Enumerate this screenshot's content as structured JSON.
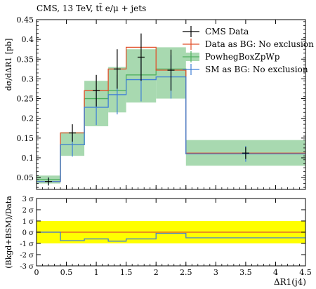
{
  "chart_data": [
    {
      "type": "line",
      "title": "CMS, 13 TeV, tt̄ e/μ + jets",
      "ylabel": "dσ/dΔR1 [pb]",
      "xlim": [
        0,
        4.5
      ],
      "ylim": [
        0.02,
        0.45
      ],
      "yticks": [
        0.05,
        0.1,
        0.15,
        0.2,
        0.25,
        0.3,
        0.35,
        0.4,
        0.45
      ],
      "ytick_labels": [
        "0.05",
        "0.1",
        "0.15",
        "0.2",
        "0.25",
        "0.3",
        "0.35",
        "0.4",
        "0.45"
      ],
      "legend": [
        "CMS Data",
        "Data as BG: No exclusion",
        "PowhegBoxZpWp",
        "SM as BG: No exclusion"
      ],
      "legend_position": "top-right",
      "colors": {
        "data": "#000000",
        "data_bg": "#e1512b",
        "powheg": "#50b060",
        "sm_bg": "#3f7fd6",
        "band": "#a8d9b0"
      },
      "edges": [
        0,
        0.4,
        0.8,
        1.2,
        1.5,
        2.0,
        2.5,
        4.5
      ],
      "series": [
        {
          "name": "CMS Data",
          "x": [
            0.2,
            0.6,
            1.0,
            1.35,
            1.75,
            2.25,
            3.5
          ],
          "y": [
            0.04,
            0.163,
            0.27,
            0.325,
            0.355,
            0.322,
            0.112
          ],
          "yerr_up": [
            0.01,
            0.022,
            0.04,
            0.05,
            0.06,
            0.052,
            0.015
          ],
          "yerr_down": [
            0.01,
            0.022,
            0.04,
            0.05,
            0.06,
            0.052,
            0.015
          ]
        },
        {
          "name": "Data as BG: No exclusion",
          "values": [
            0.04,
            0.163,
            0.27,
            0.325,
            0.38,
            0.322,
            0.112
          ]
        },
        {
          "name": "PowhegBoxZpWp",
          "values": [
            0.045,
            0.133,
            0.25,
            0.27,
            0.31,
            0.325,
            0.11
          ],
          "band_low": [
            0.035,
            0.105,
            0.18,
            0.215,
            0.24,
            0.25,
            0.08
          ],
          "band_high": [
            0.055,
            0.165,
            0.295,
            0.33,
            0.375,
            0.38,
            0.145
          ]
        },
        {
          "name": "SM as BG: No exclusion",
          "values": [
            0.04,
            0.133,
            0.228,
            0.26,
            0.298,
            0.305,
            0.11
          ],
          "yerr_up": [
            0.01,
            0.03,
            0.045,
            0.05,
            0.055,
            0.055,
            0.02
          ],
          "yerr_down": [
            0.01,
            0.03,
            0.045,
            0.05,
            0.055,
            0.055,
            0.02
          ]
        }
      ]
    },
    {
      "type": "line",
      "xlabel": "ΔR1(j4)",
      "ylabel": "(Bkgd+BSM)/Data",
      "xlim": [
        0,
        4.5
      ],
      "ylim": [
        -3,
        3
      ],
      "xticks": [
        0,
        0.5,
        1,
        1.5,
        2,
        2.5,
        3,
        3.5,
        4,
        4.5
      ],
      "xtick_labels": [
        "0",
        "0.5",
        "1",
        "1.5",
        "2",
        "2.5",
        "3",
        "3.5",
        "4",
        "4.5"
      ],
      "yticks": [
        -3,
        -2,
        -1,
        0,
        1,
        2,
        3
      ],
      "ytick_labels": [
        "-3 σ",
        "-2 σ",
        "-1 σ",
        "0 σ",
        "1 σ",
        "2 σ",
        "3 σ"
      ],
      "band": [
        -1,
        1
      ],
      "series": [
        {
          "name": "Data as BG: No exclusion",
          "values": [
            0,
            0,
            0,
            0,
            0,
            0,
            0
          ]
        },
        {
          "name": "SM as BG: No exclusion",
          "values": [
            0,
            -0.75,
            -0.6,
            -0.8,
            -0.6,
            -0.1,
            -0.5
          ]
        }
      ]
    }
  ]
}
